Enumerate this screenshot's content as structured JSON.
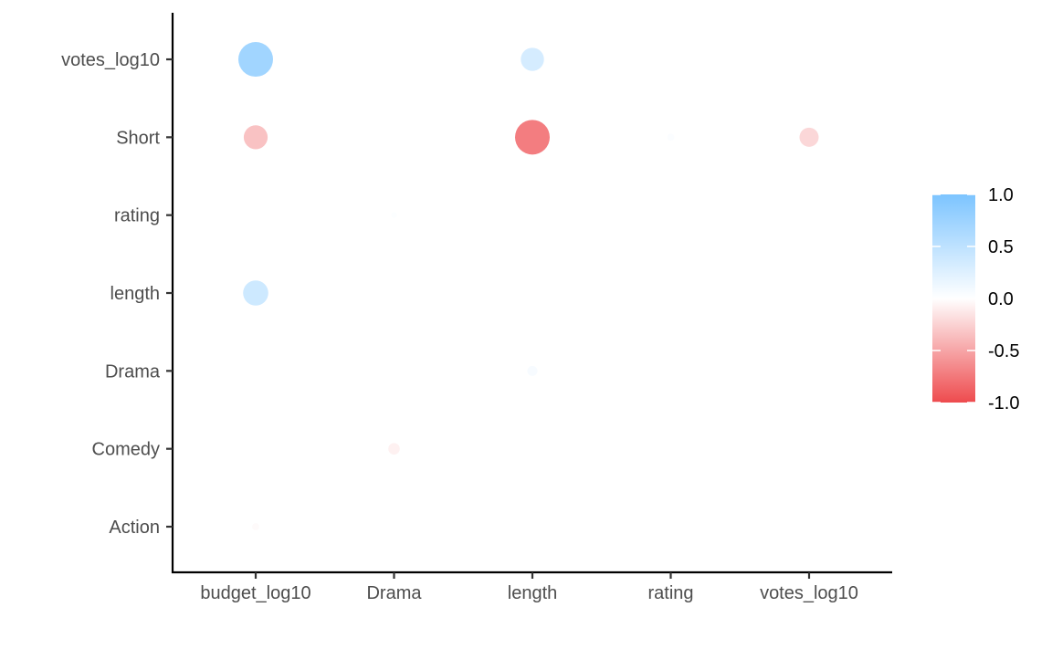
{
  "chart_data": {
    "type": "scatter",
    "subtype": "correlation-bubble",
    "title": "",
    "xlabel": "",
    "ylabel": "",
    "x_categories": [
      "budget_log10",
      "Drama",
      "length",
      "rating",
      "votes_log10"
    ],
    "y_categories": [
      "Action",
      "Comedy",
      "Drama",
      "length",
      "rating",
      "Short",
      "votes_log10"
    ],
    "points": [
      {
        "x": "budget_log10",
        "y": "votes_log10",
        "value": 0.72
      },
      {
        "x": "length",
        "y": "votes_log10",
        "value": 0.32
      },
      {
        "x": "budget_log10",
        "y": "Short",
        "value": -0.34
      },
      {
        "x": "length",
        "y": "Short",
        "value": -0.72
      },
      {
        "x": "rating",
        "y": "Short",
        "value": 0.03
      },
      {
        "x": "votes_log10",
        "y": "Short",
        "value": -0.22
      },
      {
        "x": "Drama",
        "y": "rating",
        "value": 0.02
      },
      {
        "x": "budget_log10",
        "y": "length",
        "value": 0.38
      },
      {
        "x": "length",
        "y": "Drama",
        "value": 0.06
      },
      {
        "x": "Drama",
        "y": "Comedy",
        "value": -0.08
      },
      {
        "x": "budget_log10",
        "y": "Action",
        "value": -0.03
      }
    ],
    "colorbar": {
      "ticks": [
        "1.0",
        "0.5",
        "0.0",
        "-0.5",
        "-1.0"
      ],
      "range": [
        -1,
        1
      ],
      "high_color": "#7cc4ff",
      "mid_color": "#ffffff",
      "low_color": "#ee4b4e"
    },
    "grid": false,
    "legend_position": "right"
  }
}
